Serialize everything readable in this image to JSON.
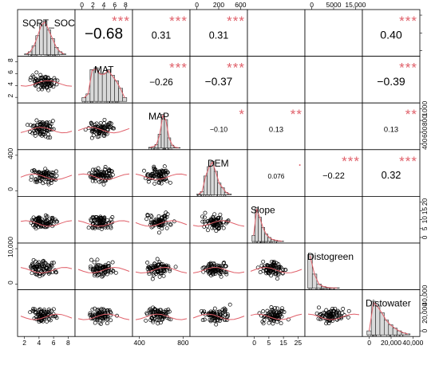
{
  "chart_data": {
    "type": "scatter",
    "variables": [
      "SQRT_SOC",
      "MAT",
      "MAP",
      "DEM",
      "Slope",
      "Distogreen",
      "Distowater"
    ],
    "correlations": [
      {
        "row": 0,
        "col": 1,
        "r": "−0.68",
        "stars": "***"
      },
      {
        "row": 0,
        "col": 2,
        "r": "0.31",
        "stars": "***"
      },
      {
        "row": 0,
        "col": 3,
        "r": "0.31",
        "stars": "***"
      },
      {
        "row": 0,
        "col": 4,
        "r": "",
        "stars": ""
      },
      {
        "row": 0,
        "col": 5,
        "r": "",
        "stars": ""
      },
      {
        "row": 0,
        "col": 6,
        "r": "0.40",
        "stars": "***"
      },
      {
        "row": 1,
        "col": 2,
        "r": "−0.26",
        "stars": "***"
      },
      {
        "row": 1,
        "col": 3,
        "r": "−0.37",
        "stars": "***"
      },
      {
        "row": 1,
        "col": 4,
        "r": "",
        "stars": ""
      },
      {
        "row": 1,
        "col": 5,
        "r": "",
        "stars": ""
      },
      {
        "row": 1,
        "col": 6,
        "r": "−0.39",
        "stars": "***"
      },
      {
        "row": 2,
        "col": 3,
        "r": "−0.10",
        "stars": "*"
      },
      {
        "row": 2,
        "col": 4,
        "r": "0.13",
        "stars": "**"
      },
      {
        "row": 2,
        "col": 5,
        "r": "",
        "stars": ""
      },
      {
        "row": 2,
        "col": 6,
        "r": "0.13",
        "stars": "**"
      },
      {
        "row": 3,
        "col": 4,
        "r": "0.076",
        "stars": "."
      },
      {
        "row": 3,
        "col": 5,
        "r": "−0.22",
        "stars": "***"
      },
      {
        "row": 3,
        "col": 6,
        "r": "0.32",
        "stars": "***"
      },
      {
        "row": 4,
        "col": 5,
        "r": "",
        "stars": ""
      },
      {
        "row": 4,
        "col": 6,
        "r": "",
        "stars": ""
      },
      {
        "row": 5,
        "col": 6,
        "r": "",
        "stars": ""
      }
    ],
    "histograms": [
      [
        1,
        4,
        12,
        26,
        42,
        46,
        34,
        22,
        10,
        4,
        1
      ],
      [
        4,
        8,
        34,
        36,
        30,
        30,
        34,
        28,
        22,
        14,
        4
      ],
      [
        2,
        4,
        10,
        38,
        92,
        78,
        28,
        8,
        2,
        1
      ],
      [
        2,
        8,
        48,
        72,
        86,
        60,
        30,
        18,
        6,
        2
      ],
      [
        18,
        100,
        72,
        42,
        22,
        12,
        6,
        4,
        2,
        1
      ],
      [
        100,
        42,
        12,
        5,
        2,
        1,
        1
      ],
      [
        12,
        100,
        86,
        66,
        44,
        30,
        20,
        12,
        6,
        3
      ]
    ],
    "tick_labels": {
      "top": {
        "1": [
          "0",
          "2",
          "4",
          "6",
          "8"
        ],
        "3": [
          "0",
          "200",
          "600"
        ],
        "5": [
          "0",
          "5000",
          "15,000"
        ]
      },
      "bottom": {
        "0": [
          "2",
          "4",
          "6",
          "8"
        ],
        "2": [
          "400",
          "800"
        ],
        "4": [
          "0",
          "5",
          "15",
          "25"
        ],
        "6": [
          "0",
          "20,000",
          "40,000"
        ]
      },
      "left": {
        "1": [
          "2",
          "4",
          "6",
          "8"
        ],
        "3": [
          "0",
          "400"
        ],
        "5": [
          "0",
          "10,000"
        ]
      },
      "right": {
        "0": [
          "",
          "",
          ""
        ],
        "2": [
          "400",
          "600",
          "800",
          "1000"
        ],
        "4": [
          "0",
          "5",
          "10",
          "15",
          "20"
        ],
        "6": [
          "0",
          "20,000",
          "40,000"
        ]
      }
    },
    "colors": {
      "point": "#000000",
      "smooth": "#e0606a",
      "star": "#e0606a",
      "bar": "#d9d9d9",
      "density": "#e0606a"
    },
    "grid": false,
    "legend": "none"
  }
}
